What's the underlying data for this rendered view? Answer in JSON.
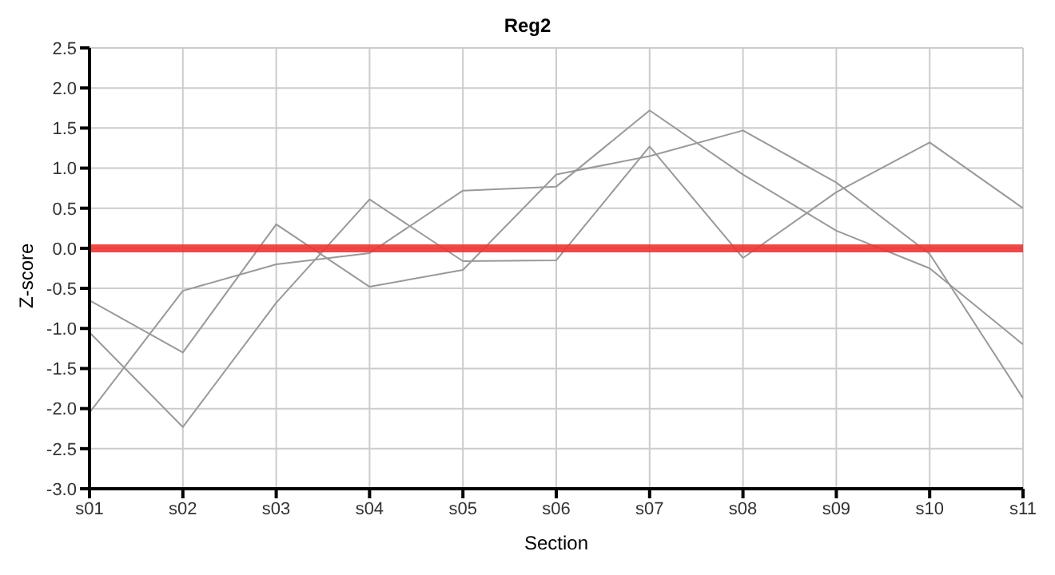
{
  "chart_data": {
    "type": "line",
    "title": "Reg2",
    "xlabel": "Section",
    "ylabel": "Z-score",
    "categories": [
      "s01",
      "s02",
      "s03",
      "s04",
      "s05",
      "s06",
      "s07",
      "s08",
      "s09",
      "s10",
      "s11"
    ],
    "series": [
      {
        "color": "#999999",
        "values": [
          -0.65,
          -1.3,
          0.3,
          -0.48,
          -0.27,
          0.92,
          1.15,
          1.47,
          0.82,
          -0.07,
          -1.87
        ]
      },
      {
        "color": "#999999",
        "values": [
          -1.05,
          -2.23,
          -0.68,
          0.61,
          -0.16,
          -0.15,
          1.27,
          -0.12,
          0.7,
          1.32,
          0.5
        ]
      },
      {
        "color": "#999999",
        "values": [
          -2.05,
          -0.53,
          -0.2,
          -0.06,
          0.72,
          0.77,
          1.72,
          0.92,
          0.22,
          -0.25,
          -1.2
        ]
      }
    ],
    "ylim": [
      -3,
      2.5
    ],
    "yticks": [
      {
        "value": -3,
        "label": "-3.0"
      },
      {
        "value": -2.5,
        "label": "-2.5"
      },
      {
        "value": -2,
        "label": "-2.0"
      },
      {
        "value": -1.5,
        "label": "-1.5"
      },
      {
        "value": -1,
        "label": "-1.0"
      },
      {
        "value": -0.5,
        "label": "-0.5"
      },
      {
        "value": 0,
        "label": "0.0"
      },
      {
        "value": 0.5,
        "label": "0.5"
      },
      {
        "value": 1,
        "label": "1.0"
      },
      {
        "value": 1.5,
        "label": "1.5"
      },
      {
        "value": 2,
        "label": "2.0"
      },
      {
        "value": 2.5,
        "label": "2.5"
      }
    ],
    "ref_lines": [
      {
        "axis": "y",
        "value": 0,
        "color": "#ee3333"
      }
    ],
    "grid": true,
    "marker": "none",
    "line_style": "solid"
  }
}
